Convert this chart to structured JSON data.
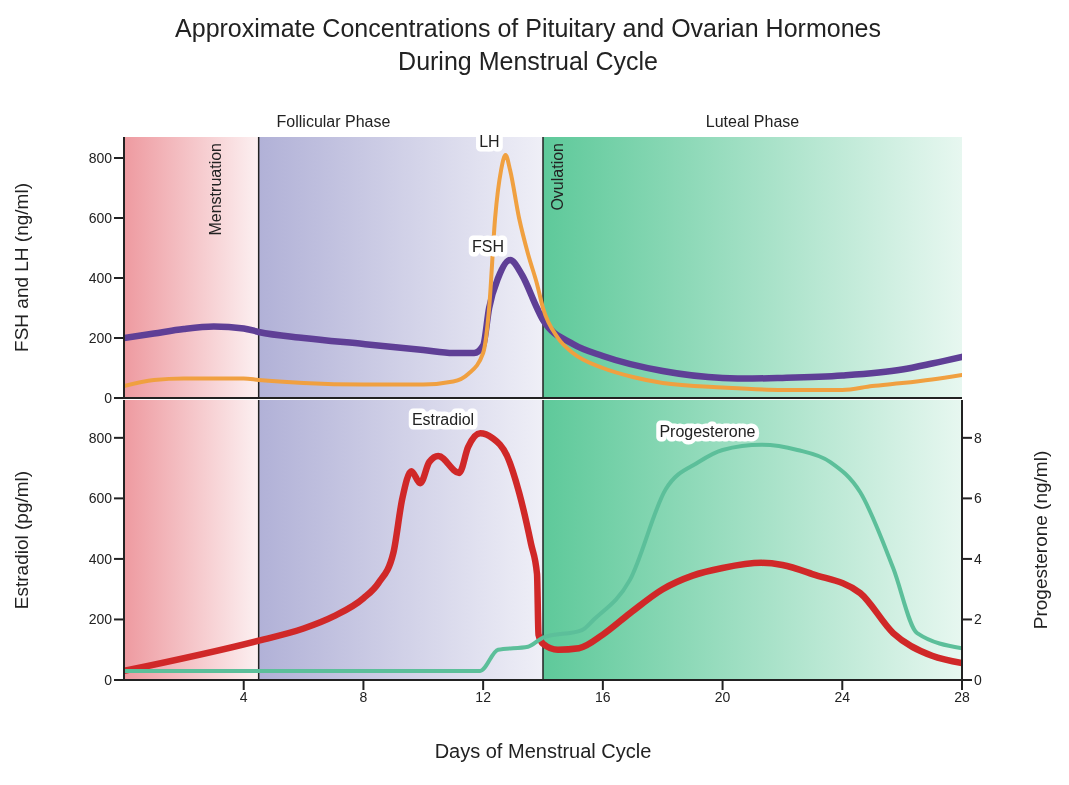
{
  "chart_data": [
    {
      "type": "line",
      "title": "Approximate Concentrations of Pituitary and Ovarian Hormones During Menstrual Cycle",
      "ylabel": "FSH and LH (ng/ml)",
      "xlim": [
        0,
        28
      ],
      "ylim": [
        0,
        870
      ],
      "yticks": [
        0,
        200,
        400,
        600,
        800
      ],
      "tick_labels": "y",
      "series": [
        {
          "name": "FSH",
          "color": "#5f3f96",
          "x": [
            0,
            1,
            2,
            3,
            4,
            4.5,
            6,
            8,
            10,
            11,
            11.7,
            12,
            12.2,
            12.5,
            12.9,
            13.3,
            13.8,
            14,
            15,
            16,
            18,
            20,
            21,
            22,
            24,
            26,
            27,
            28
          ],
          "values": [
            200,
            215,
            230,
            238,
            232,
            220,
            200,
            180,
            160,
            150,
            150,
            175,
            300,
            400,
            460,
            410,
            300,
            260,
            180,
            140,
            90,
            67,
            65,
            67,
            75,
            95,
            115,
            137
          ]
        },
        {
          "name": "LH",
          "color": "#f0a040",
          "x": [
            0,
            1,
            2,
            3,
            4,
            4.5,
            6,
            8,
            10,
            11,
            11.5,
            12,
            12.2,
            12.4,
            12.6,
            12.75,
            12.9,
            13.2,
            13.5,
            13.8,
            14,
            14.5,
            15,
            16,
            17,
            18,
            20,
            22,
            24,
            25,
            26,
            27,
            28
          ],
          "values": [
            40,
            60,
            65,
            65,
            65,
            60,
            50,
            45,
            45,
            55,
            80,
            150,
            300,
            600,
            760,
            810,
            760,
            600,
            480,
            380,
            300,
            200,
            150,
            100,
            70,
            50,
            35,
            27,
            27,
            40,
            50,
            62,
            77
          ]
        }
      ],
      "bands": [
        {
          "axis": "x",
          "from": 0,
          "to": 14,
          "label": "Follicular Phase",
          "color": "#9494c8"
        },
        {
          "axis": "x",
          "from": 14,
          "to": 28,
          "label": "Luteal Phase",
          "color": "#5ec99a"
        },
        {
          "axis": "x",
          "from": 0,
          "to": 4.5,
          "label": "Menstruation",
          "color": "#ee9aa0"
        }
      ],
      "ref_lines": [
        {
          "axis": "x",
          "value": 4.5,
          "color": "#222222"
        },
        {
          "axis": "x",
          "value": 14,
          "label": "Ovulation",
          "color": "#222222"
        }
      ]
    },
    {
      "type": "line",
      "xlabel": "Days of Menstrual Cycle",
      "ylabel": "Estradiol (pg/ml)",
      "y2label": "Progesterone (ng/ml)",
      "xlim": [
        0,
        28
      ],
      "xticks": [
        4,
        8,
        12,
        16,
        20,
        24,
        28
      ],
      "ylim": [
        0,
        925
      ],
      "yticks": [
        0,
        200,
        400,
        600,
        800
      ],
      "y2lim": [
        0,
        9.25
      ],
      "y2ticks": [
        0,
        2,
        4,
        6,
        8
      ],
      "series": [
        {
          "name": "Estradiol",
          "color": "#d02828",
          "x": [
            0,
            4.5,
            6,
            7,
            8,
            8.5,
            9,
            9.3,
            9.6,
            9.9,
            10.2,
            10.5,
            11.2,
            11.5,
            11.9,
            12.3,
            12.8,
            13.2,
            13.6,
            13.8,
            13.85,
            14,
            14.5,
            15.2,
            16,
            16.9,
            18,
            19,
            20,
            21.3,
            22,
            23,
            24.6,
            25.7,
            27,
            28
          ],
          "values": [
            30,
            130,
            170,
            210,
            270,
            320,
            420,
            600,
            690,
            650,
            720,
            740,
            684,
            770,
            815,
            800,
            740,
            620,
            450,
            350,
            150,
            120,
            100,
            105,
            150,
            220,
            300,
            345,
            370,
            387,
            380,
            350,
            287,
            155,
            80,
            56
          ]
        },
        {
          "name": "Progesterone",
          "color": "#5cbf9a",
          "axis": "y2",
          "x": [
            0,
            4,
            8,
            11.9,
            12.5,
            13.5,
            14,
            15.3,
            15.7,
            16.9,
            18.1,
            19.2,
            20,
            21.3,
            22.5,
            23.6,
            24.6,
            25.7,
            26.5,
            28
          ],
          "values": [
            0.3,
            0.3,
            0.3,
            0.3,
            1.0,
            1.1,
            1.4,
            1.65,
            2.0,
            3.3,
            6.3,
            7.2,
            7.6,
            7.77,
            7.6,
            7.2,
            6.2,
            3.7,
            1.55,
            1.05
          ]
        }
      ],
      "bands": [
        {
          "axis": "x",
          "from": 0,
          "to": 14,
          "color": "#9494c8"
        },
        {
          "axis": "x",
          "from": 14,
          "to": 28,
          "color": "#5ec99a"
        },
        {
          "axis": "x",
          "from": 0,
          "to": 4.5,
          "color": "#ee9aa0"
        }
      ],
      "ref_lines": [
        {
          "axis": "x",
          "value": 4.5,
          "color": "#222222"
        },
        {
          "axis": "x",
          "value": 14,
          "color": "#222222"
        }
      ]
    }
  ]
}
